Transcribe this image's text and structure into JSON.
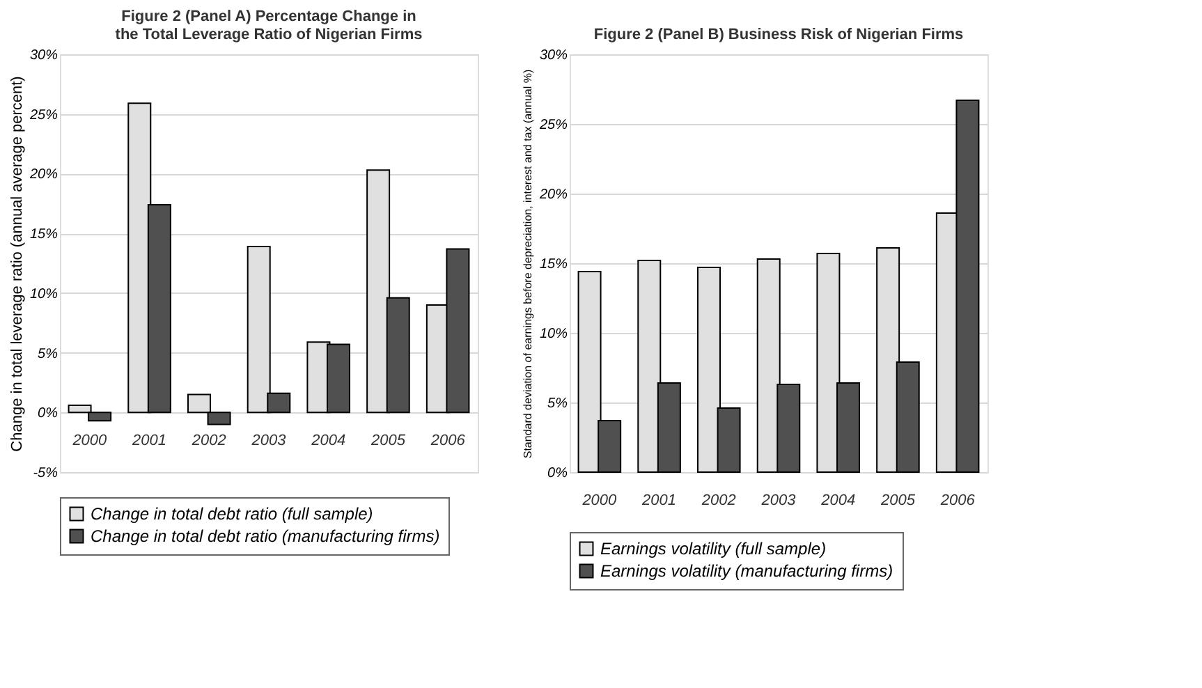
{
  "chart_data": [
    {
      "type": "bar",
      "title": "Figure 2 (Panel A) Percentage Change in the Total Leverage Ratio of Nigerian Firms",
      "ylabel": "Change in total leverage ratio (annual average percent)",
      "categories": [
        "2000",
        "2001",
        "2002",
        "2003",
        "2004",
        "2005",
        "2006"
      ],
      "series": [
        {
          "name": "Change in total debt ratio (full sample)",
          "color": "#e0e0e0",
          "values": [
            0.6,
            25.9,
            1.5,
            13.9,
            5.9,
            20.3,
            9.0
          ]
        },
        {
          "name": "Change in total debt ratio (manufacturing firms)",
          "color": "#505050",
          "values": [
            -0.7,
            17.4,
            -1.0,
            1.6,
            5.7,
            9.6,
            13.7
          ]
        }
      ],
      "ylim": [
        -5,
        30
      ],
      "yticks": [
        {
          "value": -5,
          "label": "-5%"
        },
        {
          "value": 0,
          "label": "0%"
        },
        {
          "value": 5,
          "label": "5%"
        },
        {
          "value": 10,
          "label": "10%"
        },
        {
          "value": 15,
          "label": "15%"
        },
        {
          "value": 20,
          "label": "20%"
        },
        {
          "value": 25,
          "label": "25%"
        },
        {
          "value": 30,
          "label": "30%"
        }
      ],
      "grid": "y",
      "legend": "bottom"
    },
    {
      "type": "bar",
      "title": "Figure 2 (Panel B) Business Risk of  Nigerian Firms",
      "ylabel": "Standard deviation of earnings before depreciation, interest and tax (annual %)",
      "categories": [
        "2000",
        "2001",
        "2002",
        "2003",
        "2004",
        "2005",
        "2006"
      ],
      "series": [
        {
          "name": "Earnings volatility (full sample)",
          "color": "#e0e0e0",
          "values": [
            14.4,
            15.2,
            14.7,
            15.3,
            15.7,
            16.1,
            18.6
          ]
        },
        {
          "name": "Earnings volatility (manufacturing firms)",
          "color": "#505050",
          "values": [
            3.7,
            6.4,
            4.6,
            6.3,
            6.4,
            7.9,
            26.7
          ]
        }
      ],
      "ylim": [
        0,
        30
      ],
      "yticks": [
        {
          "value": 0,
          "label": "0%"
        },
        {
          "value": 5,
          "label": "5%"
        },
        {
          "value": 10,
          "label": "10%"
        },
        {
          "value": 15,
          "label": "15%"
        },
        {
          "value": 20,
          "label": "20%"
        },
        {
          "value": 25,
          "label": "25%"
        },
        {
          "value": 30,
          "label": "30%"
        }
      ],
      "grid": "y",
      "legend": "bottom"
    }
  ]
}
